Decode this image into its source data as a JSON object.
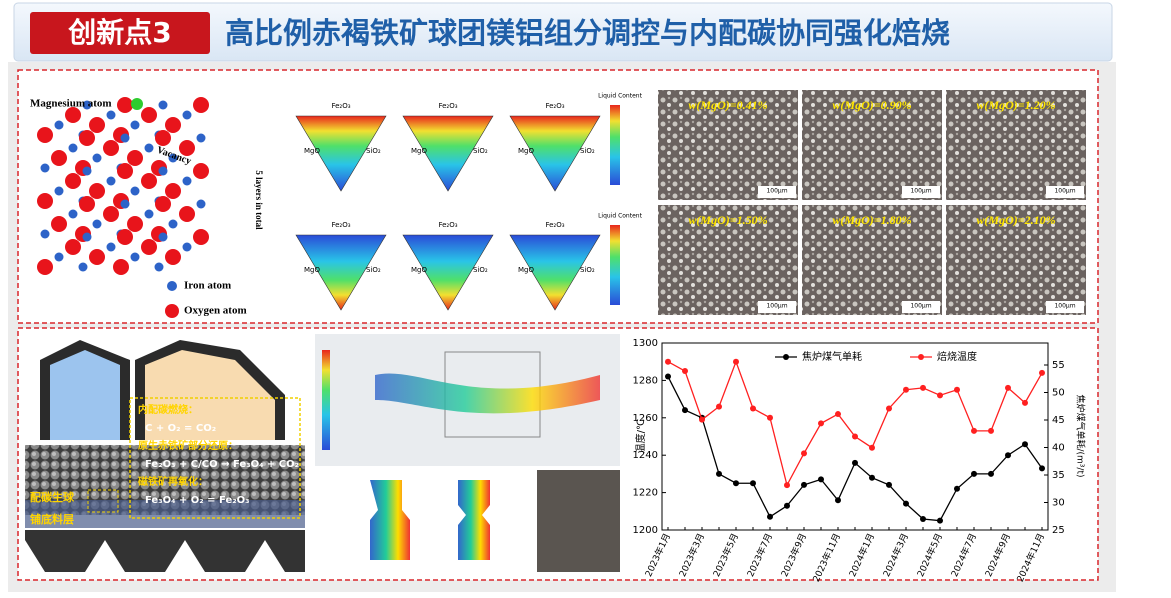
{
  "header": {
    "badge": "创新点3",
    "title": "高比例赤褐铁矿球团镁铝组分调控与内配碳协同强化焙烧"
  },
  "crystal": {
    "magnesium": "Magnesium atom",
    "vacancy": "Vacancy",
    "layers": "5 layers in total",
    "iron": "Iron atom",
    "oxygen": "Oxygen atom"
  },
  "ternary": {
    "legend": "Liquid Content",
    "vertices": [
      "Fe₂O₃",
      "MgO",
      "SiO₂"
    ]
  },
  "micrographs": {
    "labels": [
      "w(MgO)=0.41%",
      "w(MgO)=0.90%",
      "w(MgO)=1.20%",
      "w(MgO)=1.50%",
      "w(MgO)=1.80%",
      "w(MgO)=2.10%"
    ],
    "scale": "100μm"
  },
  "sintering": {
    "lines": [
      "内配碳燃烧：",
      "C + O₂ = CO₂",
      "原生赤铁矿部分还原：",
      "Fe₂O₃ + C/CO → Fe₃O₄ + CO₂",
      "磁铁矿再氧化：",
      "Fe₃O₄ + O₂ = Fe₂O₃"
    ],
    "green_ball": "配碳生球",
    "bed_layer": "铺底料层"
  },
  "chart_data": {
    "type": "line",
    "categories": [
      "2023年1月",
      null,
      "2023年3月",
      null,
      "2023年5月",
      null,
      "2023年7月",
      null,
      "2023年9月",
      null,
      "2023年11月",
      null,
      "2024年1月",
      null,
      "2024年3月",
      null,
      "2024年5月",
      null,
      "2024年7月",
      null,
      "2024年9月",
      null,
      "2024年11月"
    ],
    "series": [
      {
        "name": "焦炉煤气单耗",
        "color": "#000000",
        "axis": "y2",
        "values": [
          52.9,
          46.8,
          45.4,
          35.2,
          33.5,
          33.5,
          27.4,
          29.4,
          33.2,
          34.2,
          30.4,
          37.2,
          34.5,
          33.2,
          29.8,
          27.0,
          26.7,
          32.5,
          35.2,
          35.2,
          38.6,
          40.6,
          36.2
        ]
      },
      {
        "name": "焙烧温度",
        "color": "#ff2020",
        "axis": "y",
        "values": [
          1290,
          1285,
          1259,
          1266,
          1290,
          1265,
          1260,
          1224,
          1241,
          1257,
          1262,
          1250,
          1244,
          1265,
          1275,
          1276,
          1272,
          1275,
          1253,
          1253,
          1276,
          1268,
          1284
        ]
      }
    ],
    "ylabel": "温度/℃",
    "y2label": "焦炉煤气单耗/(m³/t)",
    "ylim": [
      1200,
      1300
    ],
    "yticks": [
      1200,
      1220,
      1240,
      1260,
      1280,
      1300
    ],
    "y2lim": [
      25,
      59
    ],
    "y2ticks": [
      25,
      30,
      35,
      40,
      45,
      50,
      55
    ],
    "legend": "top"
  }
}
